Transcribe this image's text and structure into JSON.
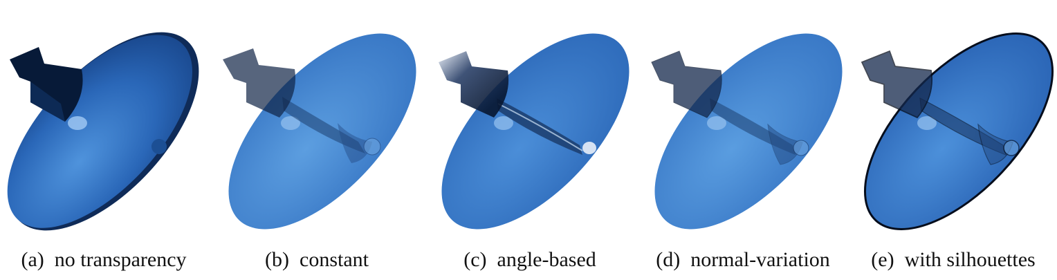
{
  "figure": {
    "panels": [
      {
        "tag": "(a)",
        "label": "no transparency",
        "mode": "opaque"
      },
      {
        "tag": "(b)",
        "label": "constant",
        "mode": "constant"
      },
      {
        "tag": "(c)",
        "label": "angle-based",
        "mode": "angle"
      },
      {
        "tag": "(d)",
        "label": "normal-variation",
        "mode": "normal"
      },
      {
        "tag": "(e)",
        "label": "with silhouettes",
        "mode": "silhouette"
      }
    ],
    "colors": {
      "surface_main": "#2f6fc0",
      "surface_light": "#4d8ed6",
      "surface_dark": "#0e2a55",
      "inner_structure": "#1d3f70",
      "silhouette": "#050d1c"
    }
  }
}
